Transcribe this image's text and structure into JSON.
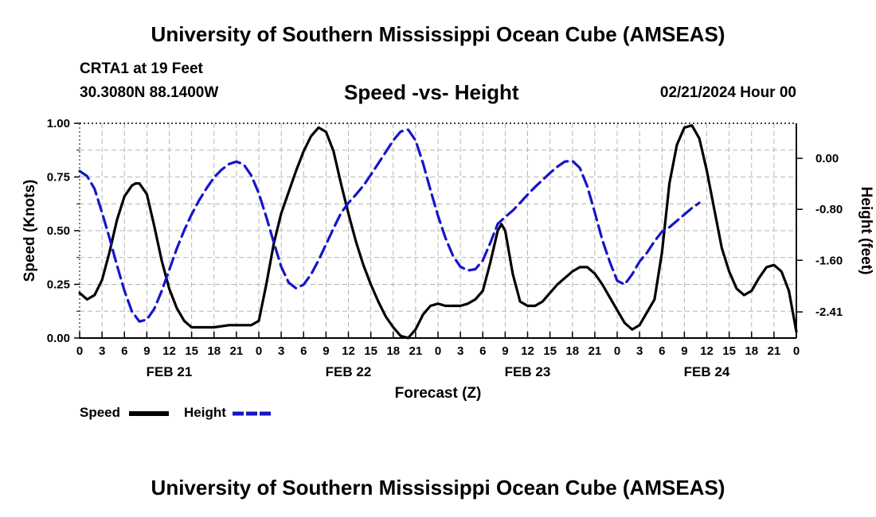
{
  "header": {
    "title": "University of Southern Mississippi Ocean Cube (AMSEAS)",
    "station": "CRTA1 at 19 Feet",
    "coords": "30.3080N  88.1400W",
    "subtitle": "Speed -vs- Height",
    "datetime": "02/21/2024 Hour 00"
  },
  "footer": {
    "title": "University of Southern Mississippi Ocean Cube (AMSEAS)"
  },
  "legend": {
    "speed_label": "Speed",
    "height_label": "Height"
  },
  "colors": {
    "speed": "#000000",
    "height": "#1515c8",
    "grid": "#b4b4b4"
  },
  "chart_data": {
    "type": "line",
    "title": "Speed -vs- Height",
    "xlabel": "Forecast (Z)",
    "ylabel": "Speed (Knots)",
    "y2label": "Height (feet)",
    "xlim": [
      0,
      96
    ],
    "ylim": [
      0,
      1
    ],
    "y2lim": [
      -2.82,
      0.55
    ],
    "x_ticks": [
      0,
      3,
      6,
      9,
      12,
      15,
      18,
      21,
      24,
      27,
      30,
      33,
      36,
      39,
      42,
      45,
      48,
      51,
      54,
      57,
      60,
      63,
      66,
      69,
      72,
      75,
      78,
      81,
      84,
      87,
      90,
      93,
      96
    ],
    "x_tick_labels": [
      "0",
      "3",
      "6",
      "9",
      "12",
      "15",
      "18",
      "21",
      "0",
      "3",
      "6",
      "9",
      "12",
      "15",
      "18",
      "21",
      "0",
      "3",
      "6",
      "9",
      "12",
      "15",
      "18",
      "21",
      "0",
      "3",
      "6",
      "9",
      "12",
      "15",
      "18",
      "21",
      "0"
    ],
    "date_labels": [
      {
        "x": 12,
        "label": "FEB 21"
      },
      {
        "x": 36,
        "label": "FEB 22"
      },
      {
        "x": 60,
        "label": "FEB 23"
      },
      {
        "x": 84,
        "label": "FEB 24"
      }
    ],
    "y_ticks": [
      0,
      0.25,
      0.5,
      0.75,
      1.0
    ],
    "y_tick_labels": [
      "0.00",
      "0.25",
      "0.50",
      "0.75",
      "1.00"
    ],
    "y2_ticks": [
      0.0,
      -0.8,
      -1.6,
      -2.41
    ],
    "y2_tick_labels": [
      "0.00",
      "-0.80",
      "-1.60",
      "-2.41"
    ],
    "series": [
      {
        "name": "Speed",
        "axis": "left",
        "style": "solid",
        "points": [
          [
            0,
            0.21
          ],
          [
            1,
            0.18
          ],
          [
            2,
            0.2
          ],
          [
            3,
            0.27
          ],
          [
            4,
            0.4
          ],
          [
            5,
            0.55
          ],
          [
            6,
            0.66
          ],
          [
            7,
            0.71
          ],
          [
            7.5,
            0.72
          ],
          [
            8,
            0.72
          ],
          [
            9,
            0.67
          ],
          [
            10,
            0.52
          ],
          [
            11,
            0.36
          ],
          [
            12,
            0.23
          ],
          [
            13,
            0.14
          ],
          [
            14,
            0.08
          ],
          [
            15,
            0.05
          ],
          [
            16,
            0.05
          ],
          [
            18,
            0.05
          ],
          [
            20,
            0.06
          ],
          [
            21,
            0.06
          ],
          [
            22,
            0.06
          ],
          [
            23,
            0.06
          ],
          [
            24,
            0.08
          ],
          [
            25,
            0.25
          ],
          [
            26,
            0.44
          ],
          [
            27,
            0.58
          ],
          [
            28,
            0.68
          ],
          [
            29,
            0.78
          ],
          [
            30,
            0.87
          ],
          [
            31,
            0.94
          ],
          [
            32,
            0.98
          ],
          [
            33,
            0.96
          ],
          [
            34,
            0.87
          ],
          [
            35,
            0.72
          ],
          [
            36,
            0.58
          ],
          [
            37,
            0.45
          ],
          [
            38,
            0.34
          ],
          [
            39,
            0.25
          ],
          [
            40,
            0.17
          ],
          [
            41,
            0.1
          ],
          [
            42,
            0.05
          ],
          [
            43,
            0.01
          ],
          [
            44,
            0.0
          ],
          [
            45,
            0.04
          ],
          [
            46,
            0.11
          ],
          [
            47,
            0.15
          ],
          [
            48,
            0.16
          ],
          [
            49,
            0.15
          ],
          [
            50,
            0.15
          ],
          [
            51,
            0.15
          ],
          [
            52,
            0.16
          ],
          [
            53,
            0.18
          ],
          [
            54,
            0.22
          ],
          [
            55,
            0.35
          ],
          [
            56,
            0.5
          ],
          [
            56.5,
            0.53
          ],
          [
            57,
            0.5
          ],
          [
            58,
            0.3
          ],
          [
            59,
            0.17
          ],
          [
            60,
            0.15
          ],
          [
            61,
            0.15
          ],
          [
            62,
            0.17
          ],
          [
            63,
            0.21
          ],
          [
            64,
            0.25
          ],
          [
            65,
            0.28
          ],
          [
            66,
            0.31
          ],
          [
            67,
            0.33
          ],
          [
            68,
            0.33
          ],
          [
            69,
            0.3
          ],
          [
            70,
            0.25
          ],
          [
            71,
            0.19
          ],
          [
            72,
            0.13
          ],
          [
            73,
            0.07
          ],
          [
            74,
            0.04
          ],
          [
            75,
            0.06
          ],
          [
            76,
            0.12
          ],
          [
            77,
            0.18
          ],
          [
            78,
            0.4
          ],
          [
            79,
            0.72
          ],
          [
            80,
            0.9
          ],
          [
            81,
            0.98
          ],
          [
            82,
            0.99
          ],
          [
            83,
            0.93
          ],
          [
            84,
            0.78
          ],
          [
            85,
            0.6
          ],
          [
            86,
            0.42
          ],
          [
            87,
            0.31
          ],
          [
            88,
            0.23
          ],
          [
            89,
            0.2
          ],
          [
            90,
            0.22
          ],
          [
            91,
            0.28
          ],
          [
            92,
            0.33
          ],
          [
            93,
            0.34
          ],
          [
            94,
            0.31
          ],
          [
            95,
            0.22
          ],
          [
            96,
            0.03
          ]
        ]
      },
      {
        "name": "Height",
        "axis": "right",
        "style": "dashed",
        "points": [
          [
            0,
            -0.2
          ],
          [
            1,
            -0.28
          ],
          [
            2,
            -0.48
          ],
          [
            3,
            -0.85
          ],
          [
            4,
            -1.25
          ],
          [
            5,
            -1.68
          ],
          [
            6,
            -2.08
          ],
          [
            7,
            -2.4
          ],
          [
            8,
            -2.56
          ],
          [
            9,
            -2.53
          ],
          [
            10,
            -2.36
          ],
          [
            11,
            -2.08
          ],
          [
            12,
            -1.75
          ],
          [
            13,
            -1.42
          ],
          [
            14,
            -1.13
          ],
          [
            15,
            -0.88
          ],
          [
            16,
            -0.66
          ],
          [
            17,
            -0.47
          ],
          [
            18,
            -0.3
          ],
          [
            19,
            -0.18
          ],
          [
            20,
            -0.09
          ],
          [
            21,
            -0.05
          ],
          [
            22,
            -0.1
          ],
          [
            23,
            -0.27
          ],
          [
            24,
            -0.55
          ],
          [
            25,
            -0.92
          ],
          [
            26,
            -1.32
          ],
          [
            27,
            -1.7
          ],
          [
            28,
            -1.95
          ],
          [
            29,
            -2.04
          ],
          [
            30,
            -1.98
          ],
          [
            31,
            -1.82
          ],
          [
            32,
            -1.6
          ],
          [
            33,
            -1.35
          ],
          [
            34,
            -1.1
          ],
          [
            35,
            -0.86
          ],
          [
            36,
            -0.7
          ],
          [
            37,
            -0.57
          ],
          [
            38,
            -0.43
          ],
          [
            39,
            -0.26
          ],
          [
            40,
            -0.08
          ],
          [
            41,
            0.1
          ],
          [
            42,
            0.28
          ],
          [
            43,
            0.42
          ],
          [
            44,
            0.45
          ],
          [
            45,
            0.28
          ],
          [
            46,
            -0.08
          ],
          [
            47,
            -0.5
          ],
          [
            48,
            -0.9
          ],
          [
            49,
            -1.25
          ],
          [
            50,
            -1.53
          ],
          [
            51,
            -1.7
          ],
          [
            52,
            -1.76
          ],
          [
            53,
            -1.74
          ],
          [
            54,
            -1.6
          ],
          [
            55,
            -1.33
          ],
          [
            56,
            -1.03
          ],
          [
            57,
            -0.92
          ],
          [
            58,
            -0.82
          ],
          [
            59,
            -0.7
          ],
          [
            60,
            -0.57
          ],
          [
            61,
            -0.45
          ],
          [
            62,
            -0.34
          ],
          [
            63,
            -0.23
          ],
          [
            64,
            -0.13
          ],
          [
            65,
            -0.05
          ],
          [
            66,
            -0.04
          ],
          [
            67,
            -0.15
          ],
          [
            68,
            -0.44
          ],
          [
            69,
            -0.85
          ],
          [
            70,
            -1.28
          ],
          [
            71,
            -1.62
          ],
          [
            72,
            -1.92
          ],
          [
            73,
            -1.98
          ],
          [
            74,
            -1.82
          ],
          [
            75,
            -1.62
          ],
          [
            76,
            -1.48
          ],
          [
            77,
            -1.3
          ],
          [
            78,
            -1.15
          ],
          [
            79,
            -1.08
          ],
          [
            80,
            -0.98
          ],
          [
            81,
            -0.88
          ],
          [
            82,
            -0.78
          ],
          [
            83,
            -0.7
          ]
        ]
      }
    ]
  }
}
